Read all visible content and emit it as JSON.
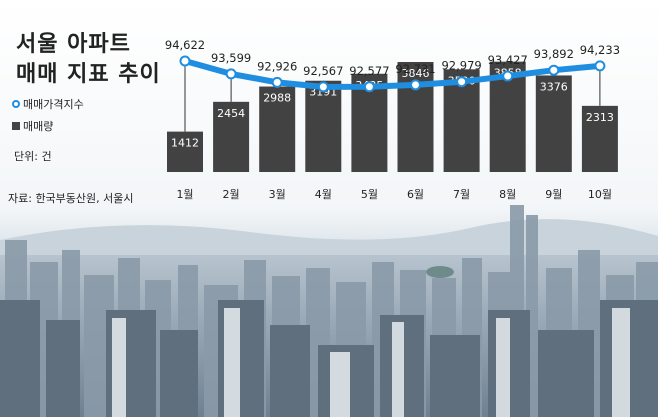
{
  "title_line1": "서울 아파트",
  "title_line2": "매매 지표 추이",
  "legend": {
    "line_label": "매매가격지수",
    "bar_label": "매매량"
  },
  "unit_label": "단위: 건",
  "source_label": "자료: 한국부동산원, 서울시",
  "colors": {
    "line": "#1f8ee0",
    "bar": "#424242",
    "bar_text": "#ffffff",
    "text": "#222222"
  },
  "chart_data": {
    "type": "bar+line",
    "categories": [
      "1월",
      "2월",
      "3월",
      "4월",
      "5월",
      "6월",
      "7월",
      "8월",
      "9월",
      "10월"
    ],
    "series": [
      {
        "name": "매매가격지수",
        "type": "line",
        "values": [
          94.622,
          93.599,
          92.926,
          92.567,
          92.577,
          92.731,
          92.979,
          93.427,
          93.892,
          94.233
        ],
        "labels": [
          "94,622",
          "93,599",
          "92,926",
          "92,567",
          "92,577",
          "92,731",
          "92,979",
          "93,427",
          "93,892",
          "94,233"
        ]
      },
      {
        "name": "매매량",
        "type": "bar",
        "values": [
          1412,
          2454,
          2988,
          3191,
          3435,
          3846,
          3590,
          3858,
          3376,
          2313
        ]
      }
    ]
  }
}
